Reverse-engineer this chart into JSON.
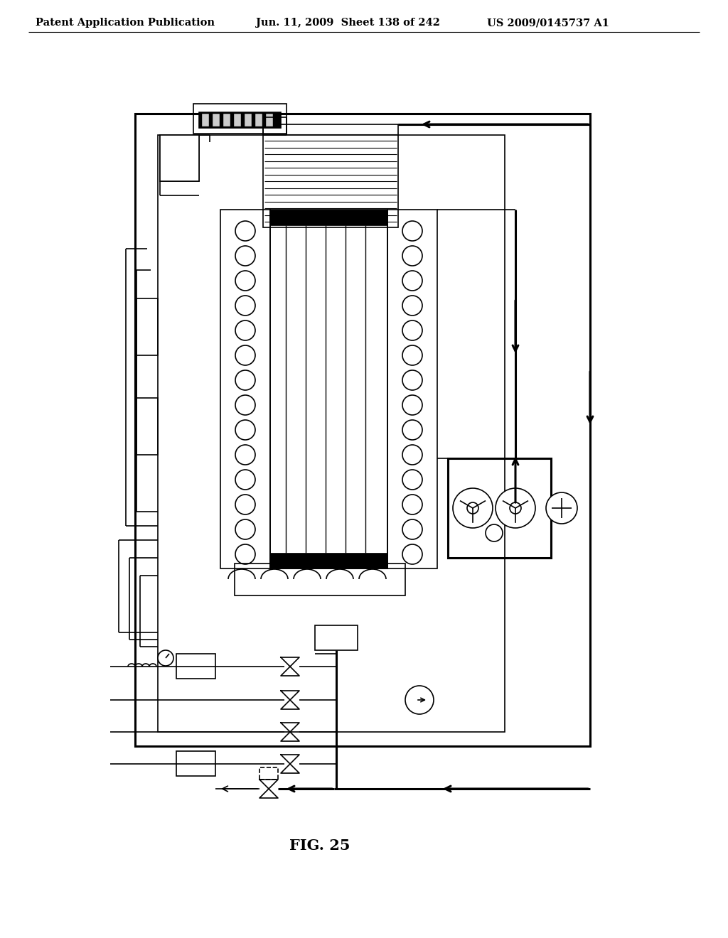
{
  "title_left": "Patent Application Publication",
  "title_mid": "Jun. 11, 2009  Sheet 138 of 242",
  "title_right": "US 2009/0145737 A1",
  "fig_label": "FIG. 25",
  "bg_color": "#ffffff",
  "line_color": "#000000",
  "title_fontsize": 10.5,
  "fig_label_fontsize": 15
}
